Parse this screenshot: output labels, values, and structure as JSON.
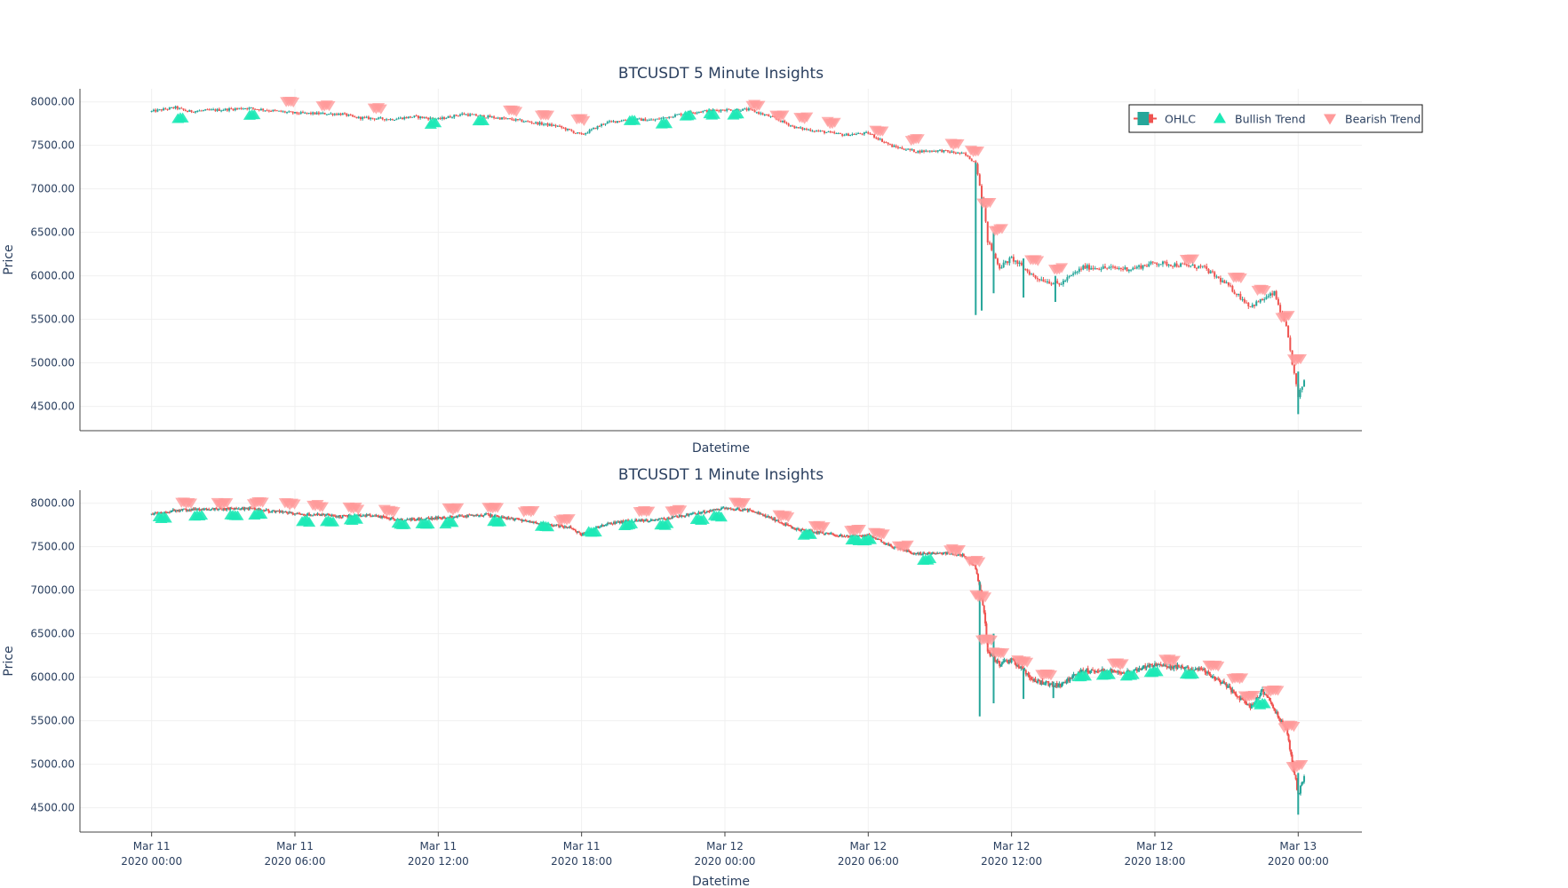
{
  "chart_data": [
    {
      "type": "candlestick",
      "title": "BTCUSDT 5 Minute Insights",
      "xlabel": "Datetime",
      "ylabel": "Price",
      "x_range": [
        "2020-03-10T21:00",
        "2020-03-13T02:40"
      ],
      "y_range": [
        4220,
        8150
      ],
      "y_ticks": [
        "8000.00",
        "7500.00",
        "7000.00",
        "6500.00",
        "6000.00",
        "5500.00",
        "5000.00",
        "4500.00"
      ],
      "grid": true,
      "price_path": [
        [
          "2020-03-11T00:00",
          7890
        ],
        [
          "2020-03-11T01:00",
          7935
        ],
        [
          "2020-03-11T01:30",
          7890
        ],
        [
          "2020-03-11T03:00",
          7910
        ],
        [
          "2020-03-11T04:00",
          7930
        ],
        [
          "2020-03-11T06:00",
          7870
        ],
        [
          "2020-03-11T08:00",
          7860
        ],
        [
          "2020-03-11T08:30",
          7820
        ],
        [
          "2020-03-11T10:00",
          7800
        ],
        [
          "2020-03-11T11:00",
          7830
        ],
        [
          "2020-03-11T12:00",
          7800
        ],
        [
          "2020-03-11T13:00",
          7860
        ],
        [
          "2020-03-11T15:00",
          7800
        ],
        [
          "2020-03-11T17:00",
          7720
        ],
        [
          "2020-03-11T18:00",
          7620
        ],
        [
          "2020-03-11T19:00",
          7760
        ],
        [
          "2020-03-11T20:00",
          7800
        ],
        [
          "2020-03-11T21:00",
          7790
        ],
        [
          "2020-03-11T22:30",
          7880
        ],
        [
          "2020-03-12T00:00",
          7910
        ],
        [
          "2020-03-12T01:00",
          7910
        ],
        [
          "2020-03-12T02:00",
          7820
        ],
        [
          "2020-03-12T03:00",
          7700
        ],
        [
          "2020-03-12T05:00",
          7620
        ],
        [
          "2020-03-12T06:00",
          7640
        ],
        [
          "2020-03-12T07:00",
          7490
        ],
        [
          "2020-03-12T08:00",
          7430
        ],
        [
          "2020-03-12T09:00",
          7440
        ],
        [
          "2020-03-12T10:00",
          7400
        ],
        [
          "2020-03-12T10:30",
          7300
        ],
        [
          "2020-03-12T10:50",
          6800
        ],
        [
          "2020-03-12T11:00",
          6400
        ],
        [
          "2020-03-12T11:30",
          6100
        ],
        [
          "2020-03-12T12:00",
          6200
        ],
        [
          "2020-03-12T13:00",
          5980
        ],
        [
          "2020-03-12T14:00",
          5900
        ],
        [
          "2020-03-12T15:00",
          6100
        ],
        [
          "2020-03-12T17:00",
          6080
        ],
        [
          "2020-03-12T18:00",
          6150
        ],
        [
          "2020-03-12T20:00",
          6100
        ],
        [
          "2020-03-12T21:00",
          5900
        ],
        [
          "2020-03-12T22:00",
          5650
        ],
        [
          "2020-03-12T23:00",
          5800
        ],
        [
          "2020-03-12T23:30",
          5400
        ],
        [
          "2020-03-13T00:00",
          4600
        ],
        [
          "2020-03-13T00:15",
          4800
        ]
      ],
      "spikes": [
        [
          "2020-03-12T10:30",
          5550,
          7300
        ],
        [
          "2020-03-12T10:45",
          5600,
          6900
        ],
        [
          "2020-03-12T11:15",
          5800,
          6500
        ],
        [
          "2020-03-12T12:30",
          5750,
          6200
        ],
        [
          "2020-03-12T13:50",
          5700,
          6000
        ],
        [
          "2020-03-13T00:00",
          4410,
          4900
        ]
      ],
      "bullish_zones": [
        [
          "2020-03-11T01:15",
          7820
        ],
        [
          "2020-03-11T04:15",
          7850
        ],
        [
          "2020-03-11T11:50",
          7760
        ],
        [
          "2020-03-11T13:50",
          7800
        ],
        [
          "2020-03-11T20:10",
          7790
        ],
        [
          "2020-03-11T21:30",
          7760
        ],
        [
          "2020-03-11T22:30",
          7855
        ],
        [
          "2020-03-11T23:30",
          7860
        ],
        [
          "2020-03-12T00:30",
          7860
        ]
      ],
      "bearish_zones": [
        [
          "2020-03-11T05:50",
          7970
        ],
        [
          "2020-03-11T07:20",
          7930
        ],
        [
          "2020-03-11T09:30",
          7900
        ],
        [
          "2020-03-11T15:10",
          7870
        ],
        [
          "2020-03-11T16:30",
          7820
        ],
        [
          "2020-03-11T18:00",
          7760
        ],
        [
          "2020-03-12T01:20",
          7930
        ],
        [
          "2020-03-12T02:20",
          7800
        ],
        [
          "2020-03-12T03:20",
          7780
        ],
        [
          "2020-03-12T04:30",
          7730
        ],
        [
          "2020-03-12T06:30",
          7630
        ],
        [
          "2020-03-12T08:00",
          7530
        ],
        [
          "2020-03-12T09:40",
          7480
        ],
        [
          "2020-03-12T10:30",
          7400
        ],
        [
          "2020-03-12T11:00",
          6800
        ],
        [
          "2020-03-12T11:30",
          6500
        ],
        [
          "2020-03-12T13:00",
          6150
        ],
        [
          "2020-03-12T14:00",
          6050
        ],
        [
          "2020-03-12T19:30",
          6150
        ],
        [
          "2020-03-12T21:30",
          5950
        ],
        [
          "2020-03-12T22:30",
          5800
        ],
        [
          "2020-03-12T23:30",
          5500
        ],
        [
          "2020-03-13T00:00",
          5000
        ]
      ]
    },
    {
      "type": "candlestick",
      "title": "BTCUSDT 1 Minute Insights",
      "xlabel": "Datetime",
      "ylabel": "Price",
      "x_range": [
        "2020-03-10T21:00",
        "2020-03-13T02:40"
      ],
      "x_ticks": [
        [
          "Mar 11",
          "2020 00:00"
        ],
        [
          "Mar 11",
          "2020 06:00"
        ],
        [
          "Mar 11",
          "2020 12:00"
        ],
        [
          "Mar 11",
          "2020 18:00"
        ],
        [
          "Mar 12",
          "2020 00:00"
        ],
        [
          "Mar 12",
          "2020 06:00"
        ],
        [
          "Mar 12",
          "2020 12:00"
        ],
        [
          "Mar 12",
          "2020 18:00"
        ],
        [
          "Mar 13",
          "2020 00:00"
        ]
      ],
      "x_tick_times": [
        "2020-03-11T00:00",
        "2020-03-11T06:00",
        "2020-03-11T12:00",
        "2020-03-11T18:00",
        "2020-03-12T00:00",
        "2020-03-12T06:00",
        "2020-03-12T12:00",
        "2020-03-12T18:00",
        "2020-03-13T00:00"
      ],
      "y_range": [
        4220,
        8150
      ],
      "y_ticks": [
        "8000.00",
        "7500.00",
        "7000.00",
        "6500.00",
        "6000.00",
        "5500.00",
        "5000.00",
        "4500.00"
      ],
      "grid": true,
      "price_path": [
        [
          "2020-03-11T00:00",
          7870
        ],
        [
          "2020-03-11T01:00",
          7920
        ],
        [
          "2020-03-11T02:00",
          7930
        ],
        [
          "2020-03-11T04:00",
          7940
        ],
        [
          "2020-03-11T06:00",
          7880
        ],
        [
          "2020-03-11T08:00",
          7850
        ],
        [
          "2020-03-11T09:00",
          7860
        ],
        [
          "2020-03-11T10:30",
          7810
        ],
        [
          "2020-03-11T12:00",
          7830
        ],
        [
          "2020-03-11T14:00",
          7870
        ],
        [
          "2020-03-11T16:00",
          7780
        ],
        [
          "2020-03-11T17:30",
          7720
        ],
        [
          "2020-03-11T18:00",
          7640
        ],
        [
          "2020-03-11T19:00",
          7760
        ],
        [
          "2020-03-11T20:00",
          7800
        ],
        [
          "2020-03-11T21:00",
          7800
        ],
        [
          "2020-03-11T22:30",
          7870
        ],
        [
          "2020-03-12T00:00",
          7940
        ],
        [
          "2020-03-12T01:00",
          7920
        ],
        [
          "2020-03-12T02:00",
          7820
        ],
        [
          "2020-03-12T03:00",
          7700
        ],
        [
          "2020-03-12T05:00",
          7620
        ],
        [
          "2020-03-12T06:00",
          7630
        ],
        [
          "2020-03-12T07:00",
          7500
        ],
        [
          "2020-03-12T08:00",
          7420
        ],
        [
          "2020-03-12T09:00",
          7430
        ],
        [
          "2020-03-12T10:00",
          7400
        ],
        [
          "2020-03-12T10:30",
          7250
        ],
        [
          "2020-03-12T10:50",
          6800
        ],
        [
          "2020-03-12T11:00",
          6300
        ],
        [
          "2020-03-12T11:30",
          6150
        ],
        [
          "2020-03-12T12:00",
          6200
        ],
        [
          "2020-03-12T13:00",
          5950
        ],
        [
          "2020-03-12T14:00",
          5900
        ],
        [
          "2020-03-12T15:00",
          6080
        ],
        [
          "2020-03-12T17:00",
          6060
        ],
        [
          "2020-03-12T18:00",
          6150
        ],
        [
          "2020-03-12T20:00",
          6080
        ],
        [
          "2020-03-12T21:00",
          5900
        ],
        [
          "2020-03-12T22:00",
          5650
        ],
        [
          "2020-03-12T22:30",
          5850
        ],
        [
          "2020-03-12T23:30",
          5400
        ],
        [
          "2020-03-13T00:00",
          4650
        ],
        [
          "2020-03-13T00:15",
          4850
        ]
      ],
      "spikes": [
        [
          "2020-03-12T10:40",
          5550,
          7100
        ],
        [
          "2020-03-12T11:15",
          5700,
          6500
        ],
        [
          "2020-03-12T12:30",
          5750,
          6100
        ],
        [
          "2020-03-12T13:45",
          5760,
          5950
        ],
        [
          "2020-03-13T00:00",
          4420,
          4900
        ]
      ],
      "bullish_zones": [
        [
          "2020-03-11T00:30",
          7840
        ],
        [
          "2020-03-11T02:00",
          7870
        ],
        [
          "2020-03-11T03:30",
          7860
        ],
        [
          "2020-03-11T04:30",
          7870
        ],
        [
          "2020-03-11T06:30",
          7800
        ],
        [
          "2020-03-11T07:30",
          7800
        ],
        [
          "2020-03-11T08:30",
          7820
        ],
        [
          "2020-03-11T10:30",
          7770
        ],
        [
          "2020-03-11T11:30",
          7770
        ],
        [
          "2020-03-11T12:30",
          7780
        ],
        [
          "2020-03-11T14:30",
          7800
        ],
        [
          "2020-03-11T16:30",
          7740
        ],
        [
          "2020-03-11T18:30",
          7680
        ],
        [
          "2020-03-11T20:00",
          7760
        ],
        [
          "2020-03-11T21:30",
          7760
        ],
        [
          "2020-03-11T23:00",
          7820
        ],
        [
          "2020-03-11T23:45",
          7860
        ],
        [
          "2020-03-12T03:30",
          7650
        ],
        [
          "2020-03-12T05:30",
          7580
        ],
        [
          "2020-03-12T06:00",
          7580
        ],
        [
          "2020-03-12T08:30",
          7360
        ],
        [
          "2020-03-12T15:00",
          6020
        ],
        [
          "2020-03-12T16:00",
          6030
        ],
        [
          "2020-03-12T17:00",
          6030
        ],
        [
          "2020-03-12T18:00",
          6060
        ],
        [
          "2020-03-12T19:30",
          6040
        ],
        [
          "2020-03-12T22:30",
          5700
        ]
      ],
      "bearish_zones": [
        [
          "2020-03-11T01:30",
          7970
        ],
        [
          "2020-03-11T03:00",
          7960
        ],
        [
          "2020-03-11T04:30",
          7970
        ],
        [
          "2020-03-11T05:50",
          7960
        ],
        [
          "2020-03-11T07:00",
          7940
        ],
        [
          "2020-03-11T08:30",
          7910
        ],
        [
          "2020-03-11T10:00",
          7880
        ],
        [
          "2020-03-11T12:40",
          7900
        ],
        [
          "2020-03-11T14:20",
          7910
        ],
        [
          "2020-03-11T15:50",
          7880
        ],
        [
          "2020-03-11T17:20",
          7780
        ],
        [
          "2020-03-11T20:40",
          7880
        ],
        [
          "2020-03-11T22:00",
          7880
        ],
        [
          "2020-03-12T00:40",
          7970
        ],
        [
          "2020-03-12T02:30",
          7820
        ],
        [
          "2020-03-12T04:00",
          7700
        ],
        [
          "2020-03-12T05:30",
          7660
        ],
        [
          "2020-03-12T06:30",
          7620
        ],
        [
          "2020-03-12T07:30",
          7480
        ],
        [
          "2020-03-12T09:40",
          7430
        ],
        [
          "2020-03-12T10:30",
          7300
        ],
        [
          "2020-03-12T10:45",
          6900
        ],
        [
          "2020-03-12T11:00",
          6400
        ],
        [
          "2020-03-12T11:30",
          6250
        ],
        [
          "2020-03-12T12:30",
          6150
        ],
        [
          "2020-03-12T13:30",
          6000
        ],
        [
          "2020-03-12T16:30",
          6120
        ],
        [
          "2020-03-12T18:40",
          6160
        ],
        [
          "2020-03-12T20:30",
          6100
        ],
        [
          "2020-03-12T21:30",
          5950
        ],
        [
          "2020-03-12T22:00",
          5750
        ],
        [
          "2020-03-12T23:00",
          5820
        ],
        [
          "2020-03-12T23:40",
          5400
        ],
        [
          "2020-03-13T00:00",
          4950
        ]
      ]
    }
  ],
  "legend": {
    "placement": "top-right",
    "items": [
      {
        "label": "OHLC",
        "kind": "candle"
      },
      {
        "label": "Bullish Trend",
        "kind": "triangle-up"
      },
      {
        "label": "Bearish Trend",
        "kind": "triangle-down"
      }
    ]
  },
  "colors": {
    "increasing": "#26a69a",
    "decreasing": "#ef5350",
    "bullish": "#1de9b6",
    "bearish": "#ff9a9a",
    "grid": "#f0f0f0",
    "axis": "#444444",
    "text": "#2a3f5f"
  }
}
